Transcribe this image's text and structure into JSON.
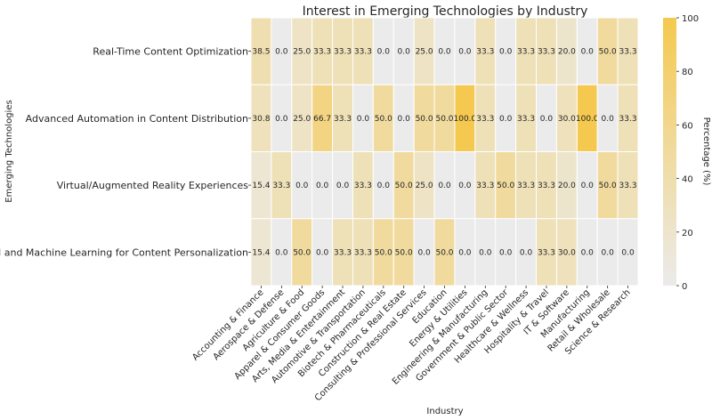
{
  "chart_data": {
    "type": "heatmap",
    "title": "Interest in Emerging Technologies by Industry",
    "xlabel": "Industry",
    "ylabel": "Emerging Technologies",
    "colorbar_label": "Percentage (%)",
    "colorbar_ticks": [
      "0",
      "20",
      "40",
      "60",
      "80",
      "100"
    ],
    "vmin": 0,
    "vmax": 100,
    "colors": {
      "low": "#ebebeb",
      "high": "#f5c94f"
    },
    "rows": [
      "Real-Time Content Optimization",
      "Advanced Automation in Content Distribution",
      "Virtual/Augmented Reality Experiences",
      "AI and Machine Learning for Content Personalization"
    ],
    "columns": [
      "Accounting & Finance",
      "Aerospace & Defense",
      "Agriculture & Food",
      "Apparel & Consumer Goods",
      "Arts, Media & Entertainment",
      "Automotive & Transportation",
      "Biotech & Pharmaceuticals",
      "Construction & Real Estate",
      "Consulting & Professional Services",
      "Education",
      "Energy & Utilities",
      "Engineering & Manufacturing",
      "Government & Public Sector",
      "Healthcare & Wellness",
      "Hospitality & Travel",
      "IT & Software",
      "Manufacturing",
      "Retail & Wholesale",
      "Science & Research"
    ],
    "values": [
      [
        38.5,
        0.0,
        25.0,
        33.3,
        33.3,
        33.3,
        0.0,
        0.0,
        25.0,
        0.0,
        0.0,
        33.3,
        0.0,
        33.3,
        33.3,
        20.0,
        0.0,
        50.0,
        33.3
      ],
      [
        30.8,
        0.0,
        25.0,
        66.7,
        33.3,
        0.0,
        50.0,
        0.0,
        50.0,
        50.0,
        100.0,
        33.3,
        0.0,
        33.3,
        0.0,
        30.0,
        100.0,
        0.0,
        33.3
      ],
      [
        15.4,
        33.3,
        0.0,
        0.0,
        0.0,
        33.3,
        0.0,
        50.0,
        25.0,
        0.0,
        0.0,
        33.3,
        50.0,
        33.3,
        33.3,
        20.0,
        0.0,
        50.0,
        33.3
      ],
      [
        15.4,
        0.0,
        50.0,
        0.0,
        33.3,
        33.3,
        50.0,
        50.0,
        0.0,
        50.0,
        0.0,
        0.0,
        0.0,
        0.0,
        33.3,
        30.0,
        0.0,
        0.0,
        0.0
      ]
    ]
  }
}
